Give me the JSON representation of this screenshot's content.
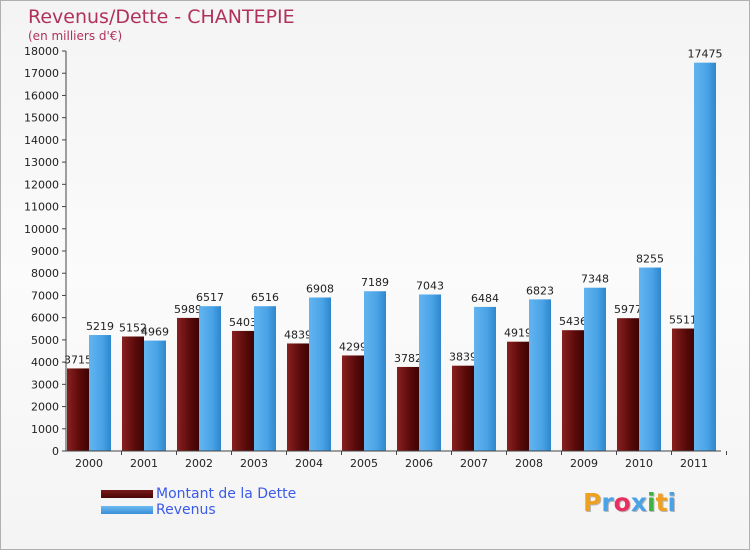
{
  "header": {
    "title": "Revenus/Dette - CHANTEPIE",
    "subtitle": "(en milliers d'€)"
  },
  "chart_data": {
    "type": "bar",
    "title": "Revenus/Dette - CHANTEPIE",
    "ylabel": "(en milliers d'€)",
    "xlabel": "",
    "ylim": [
      0,
      18000
    ],
    "ytick_step": 1000,
    "categories": [
      "2000",
      "2001",
      "2002",
      "2003",
      "2004",
      "2005",
      "2006",
      "2007",
      "2008",
      "2009",
      "2010",
      "2011"
    ],
    "series": [
      {
        "name": "Montant de la Dette",
        "color": "#6b1010",
        "values": [
          3715,
          5152,
          5989,
          5403,
          4839,
          4299,
          3782,
          3839,
          4919,
          5436,
          5977,
          5511
        ]
      },
      {
        "name": "Revenus",
        "color": "#4aa3e6",
        "values": [
          5219,
          4969,
          6517,
          6516,
          6908,
          7189,
          7043,
          6484,
          6823,
          7348,
          8255,
          17475
        ]
      }
    ],
    "grid": false,
    "legend_position": "bottom-left"
  },
  "legend": {
    "dette_label": "Montant de la Dette",
    "revenus_label": "Revenus"
  },
  "logo": {
    "letters": [
      "P",
      "r",
      "o",
      "x",
      "i",
      "t",
      "i"
    ],
    "colors": [
      "#f0a020",
      "#4aa3e6",
      "#e83060",
      "#4aa3e6",
      "#40b040",
      "#f0a020",
      "#4aa3e6"
    ]
  }
}
